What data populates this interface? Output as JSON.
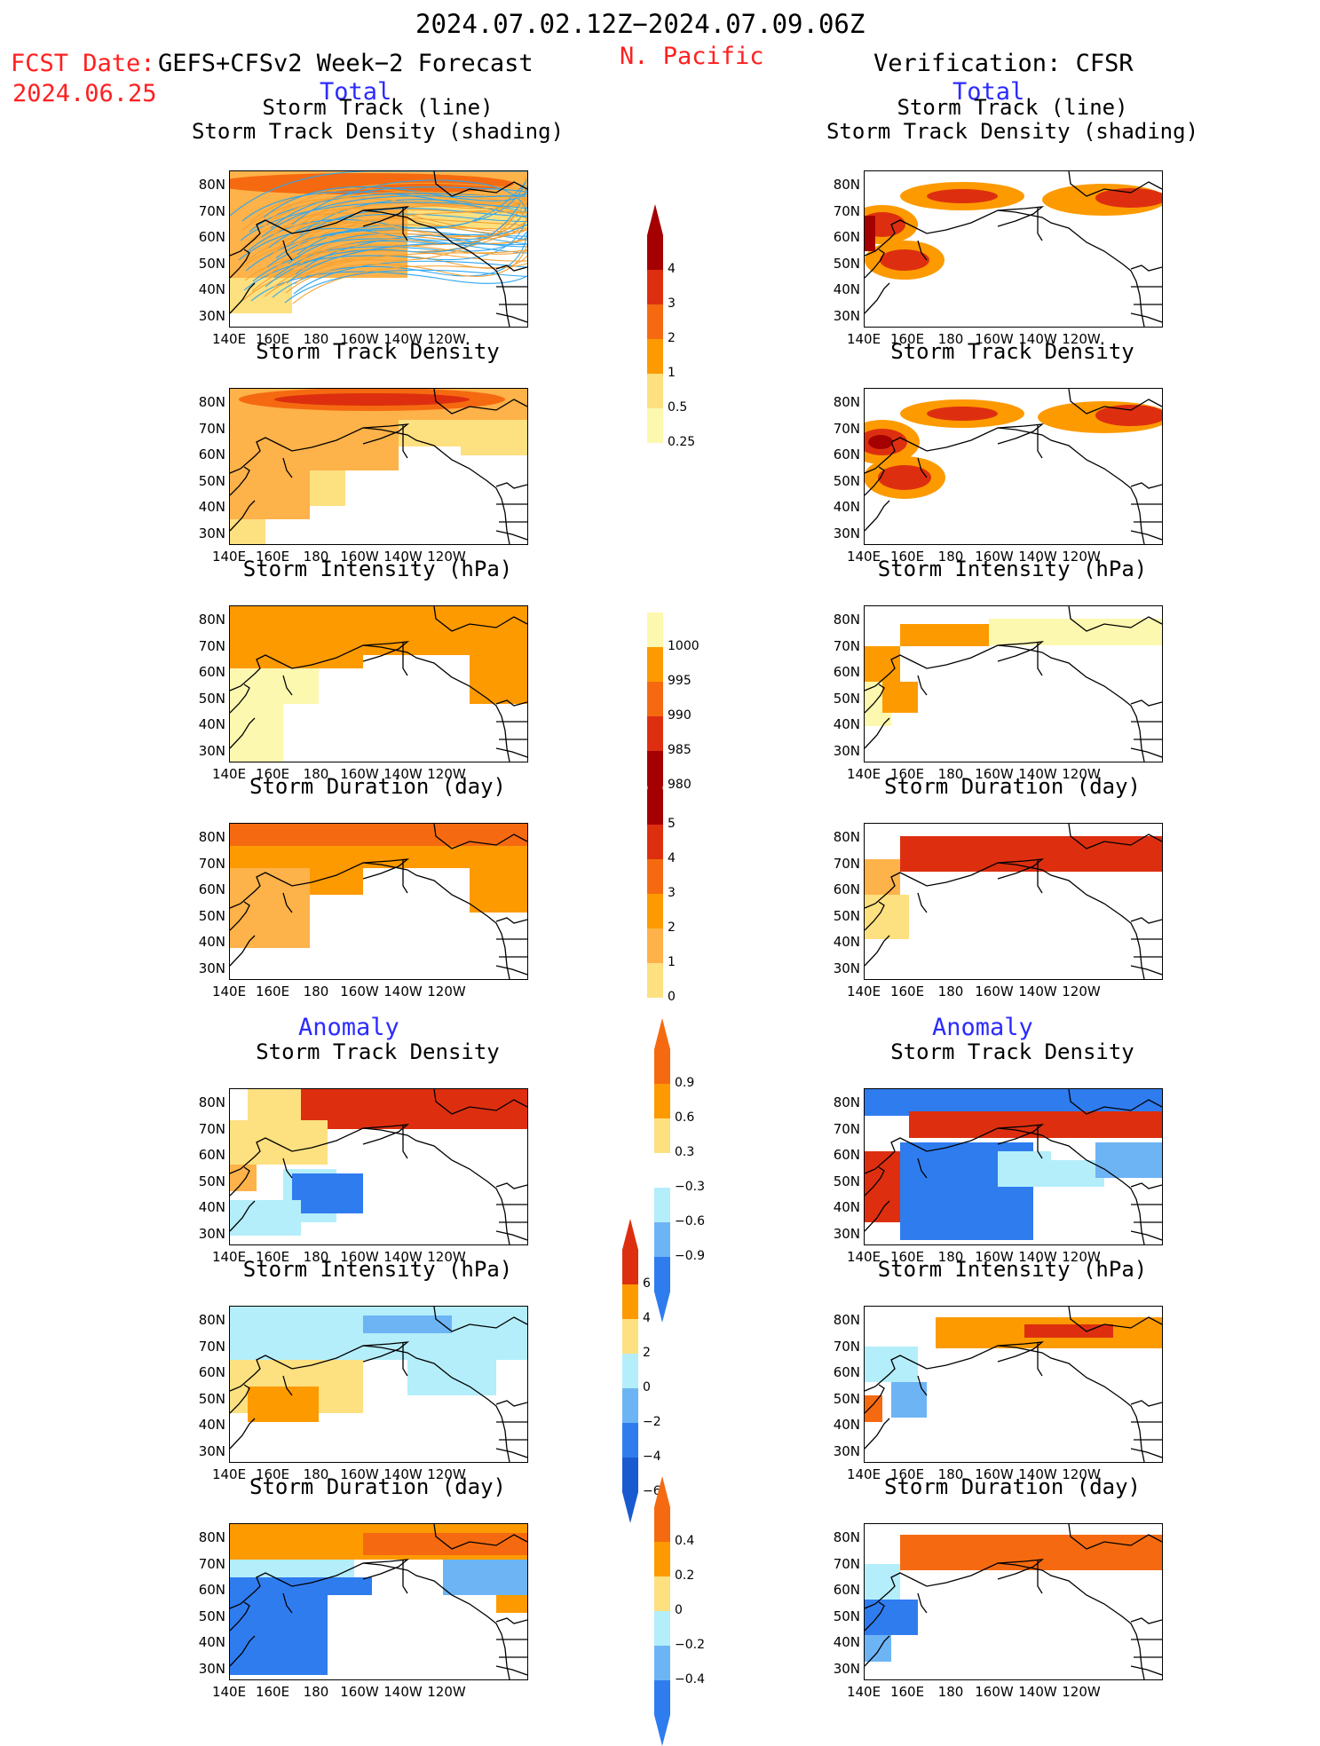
{
  "header": {
    "date_range": "2024.07.02.12Z−2024.07.09.06Z",
    "fcst_label": "FCST Date:",
    "fcst_model": "GEFS+CFSv2 Week−2 Forecast",
    "fcst_date": "2024.06.25",
    "region": "N. Pacific",
    "verification": "Verification: CFSR",
    "left_total": "Total",
    "right_total": "Total",
    "left_anomaly": "Anomaly",
    "right_anomaly": "Anomaly"
  },
  "panel_titles": {
    "storm_track_line": "Storm Track (line)",
    "storm_track_shading": "Storm Track Density (shading)",
    "storm_track_density": "Storm Track Density",
    "storm_intensity": "Storm Intensity (hPa)",
    "storm_duration": "Storm Duration (day)"
  },
  "axes": {
    "lat_ticks": [
      "80N",
      "70N",
      "60N",
      "50N",
      "40N",
      "30N"
    ],
    "lon_ticks": [
      "140E",
      "160E",
      "180",
      "160W",
      "140W",
      "120W"
    ]
  },
  "colorbars": {
    "track_density": [
      "4",
      "3",
      "2",
      "1",
      "0.5",
      "0.25"
    ],
    "intensity": [
      "1000",
      "995",
      "990",
      "985",
      "980"
    ],
    "duration": [
      "5",
      "4",
      "3",
      "2",
      "1",
      "0"
    ],
    "anom_density": [
      "0.9",
      "0.6",
      "0.3",
      "−0.3",
      "−0.6",
      "−0.9"
    ],
    "anom_intensity": [
      "6",
      "4",
      "2",
      "0",
      "−2",
      "−4",
      "−6"
    ],
    "anom_duration": [
      "0.4",
      "0.2",
      "0",
      "−0.2",
      "−0.4"
    ]
  },
  "colors": {
    "yellow_light": "#fdf8b0",
    "yellow": "#fde080",
    "orange_light": "#fdb24a",
    "orange": "#fd9a00",
    "orange_dark": "#f56a10",
    "red": "#dd2f10",
    "dark_red": "#a50000",
    "light_blue": "#b4eefa",
    "mid_blue": "#6db4f5",
    "blue": "#2f7cef",
    "dark_blue": "#1a5ad0",
    "track_line_orange": "#f5a030",
    "track_line_blue": "#2ea6f0"
  }
}
